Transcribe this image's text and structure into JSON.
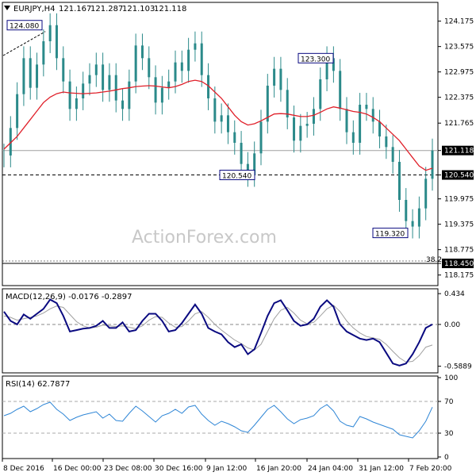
{
  "header": {
    "symbol": "EURJPY,H4",
    "open": "121.167",
    "high": "121.287",
    "low": "121.103",
    "close": "121.118"
  },
  "watermark": "ActionForex.com",
  "colors": {
    "price": "#2b8a8a",
    "ma": "#e0202a",
    "macd": "#0a0a80",
    "signal": "#a0a0a0",
    "rsi": "#2f86d6",
    "label_border": "#0a0a80"
  },
  "chart_data": [
    {
      "type": "line",
      "title": "EURJPY,H4",
      "x_labels": [
        "8 Dec 2016",
        "16 Dec 00:00",
        "23 Dec 08:00",
        "30 Dec 16:00",
        "9 Jan 12:00",
        "16 Jan 20:00",
        "24 Jan 04:00",
        "31 Jan 12:00",
        "7 Feb 20:00"
      ],
      "ylim": [
        118.0,
        124.3
      ],
      "y_ticks": [
        "124.175",
        "123.575",
        "122.975",
        "122.375",
        "121.765",
        "121.118",
        "120.540",
        "119.975",
        "119.375",
        "118.775",
        "118.450",
        "118.175"
      ],
      "series": [
        {
          "values": [
            121.0,
            121.65,
            122.45,
            123.3,
            122.6,
            123.15,
            123.7,
            124.08,
            123.3,
            122.75,
            122.1,
            122.35,
            122.7,
            122.9,
            123.15,
            122.55,
            122.9,
            122.3,
            122.1,
            122.75,
            123.6,
            123.3,
            122.85,
            122.25,
            122.6,
            122.75,
            123.2,
            123.0,
            123.5,
            123.65,
            122.9,
            122.35,
            121.8,
            121.95,
            121.55,
            121.3,
            120.8,
            120.54,
            121.05,
            121.8,
            122.65,
            123.05,
            122.55,
            121.9,
            121.35,
            121.7,
            121.75,
            122.1,
            122.8,
            123.3,
            123.0,
            122.1,
            121.55,
            121.3,
            122.2,
            122.1,
            121.8,
            121.45,
            121.2,
            120.85,
            119.95,
            119.45,
            119.32,
            119.75,
            120.45,
            121.118
          ]
        },
        {
          "name": "MA",
          "values": [
            121.15,
            121.3,
            121.45,
            121.65,
            121.85,
            122.05,
            122.25,
            122.38,
            122.46,
            122.5,
            122.48,
            122.47,
            122.46,
            122.47,
            122.48,
            122.5,
            122.52,
            122.55,
            122.58,
            122.6,
            122.63,
            122.64,
            122.65,
            122.64,
            122.62,
            122.6,
            122.63,
            122.68,
            122.75,
            122.78,
            122.75,
            122.65,
            122.5,
            122.35,
            122.15,
            121.95,
            121.8,
            121.72,
            121.75,
            121.82,
            121.9,
            121.98,
            121.99,
            121.98,
            121.95,
            121.92,
            121.92,
            121.95,
            122.02,
            122.1,
            122.15,
            122.12,
            122.08,
            122.04,
            122.02,
            121.98,
            121.9,
            121.8,
            121.65,
            121.5,
            121.35,
            121.15,
            120.95,
            120.75,
            120.65,
            120.7
          ]
        }
      ],
      "annotations": [
        {
          "label": "124.080",
          "y": 124.08
        },
        {
          "label": "123.300",
          "y": 123.3
        },
        {
          "label": "120.540",
          "y": 120.54
        },
        {
          "label": "119.320",
          "y": 119.32
        },
        {
          "label": "38.2",
          "y": 118.45
        }
      ],
      "hlines": [
        121.118,
        120.54,
        118.45
      ]
    },
    {
      "type": "line",
      "title": "MACD(12,26,9) -0.0176 -0.2897",
      "ylim": [
        -0.66,
        0.48
      ],
      "y_ticks": [
        "0.434",
        "0.00",
        "-0.5889"
      ],
      "series": [
        {
          "values": [
            0.18,
            0.05,
            0.0,
            0.14,
            0.08,
            0.15,
            0.22,
            0.35,
            0.3,
            0.12,
            -0.1,
            -0.08,
            -0.06,
            -0.05,
            -0.02,
            0.05,
            -0.05,
            -0.05,
            0.03,
            -0.1,
            -0.08,
            0.05,
            0.15,
            0.15,
            0.05,
            -0.1,
            -0.08,
            0.02,
            0.15,
            0.28,
            0.15,
            -0.05,
            -0.1,
            -0.14,
            -0.25,
            -0.32,
            -0.28,
            -0.42,
            -0.35,
            -0.12,
            0.12,
            0.3,
            0.34,
            0.2,
            0.05,
            -0.02,
            0.0,
            0.08,
            0.25,
            0.34,
            0.25,
            0.0,
            -0.1,
            -0.15,
            -0.2,
            -0.22,
            -0.2,
            -0.25,
            -0.4,
            -0.55,
            -0.58,
            -0.55,
            -0.42,
            -0.25,
            -0.05,
            0.0
          ]
        },
        {
          "name": "Signal",
          "values": [
            0.12,
            0.1,
            0.06,
            0.08,
            0.1,
            0.12,
            0.16,
            0.22,
            0.26,
            0.24,
            0.14,
            0.04,
            -0.02,
            -0.05,
            -0.04,
            -0.01,
            -0.02,
            -0.03,
            -0.02,
            -0.04,
            -0.06,
            -0.02,
            0.06,
            0.11,
            0.1,
            0.02,
            -0.04,
            -0.03,
            0.05,
            0.15,
            0.18,
            0.1,
            0.0,
            -0.08,
            -0.15,
            -0.22,
            -0.27,
            -0.33,
            -0.36,
            -0.28,
            -0.1,
            0.08,
            0.2,
            0.24,
            0.16,
            0.06,
            0.01,
            0.03,
            0.12,
            0.22,
            0.27,
            0.18,
            0.05,
            -0.05,
            -0.12,
            -0.17,
            -0.19,
            -0.21,
            -0.28,
            -0.38,
            -0.47,
            -0.53,
            -0.52,
            -0.44,
            -0.32,
            -0.29
          ]
        }
      ]
    },
    {
      "type": "line",
      "title": "RSI(14) 62.7877",
      "ylim": [
        0,
        100
      ],
      "y_ticks": [
        "100",
        "70",
        "30",
        "0"
      ],
      "series": [
        {
          "values": [
            52,
            55,
            60,
            64,
            57,
            61,
            66,
            69,
            60,
            54,
            46,
            50,
            53,
            55,
            57,
            49,
            54,
            46,
            45,
            55,
            64,
            58,
            51,
            44,
            52,
            55,
            60,
            55,
            63,
            65,
            54,
            46,
            40,
            45,
            42,
            38,
            33,
            31,
            40,
            50,
            60,
            65,
            57,
            48,
            42,
            47,
            49,
            52,
            61,
            66,
            58,
            45,
            40,
            38,
            51,
            48,
            44,
            41,
            38,
            35,
            28,
            26,
            24,
            33,
            45,
            62.8
          ]
        }
      ],
      "hlines": [
        70,
        30
      ]
    }
  ]
}
